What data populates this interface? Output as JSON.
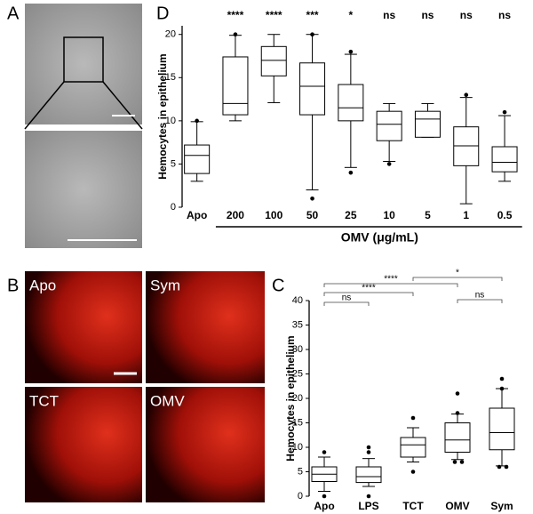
{
  "panel_labels": [
    "A",
    "B",
    "C",
    "D"
  ],
  "image_labels": [
    "Apo",
    "Sym",
    "TCT",
    "OMV"
  ],
  "chart_data": [
    {
      "type": "box",
      "ylabel": "Hemocytes in epithelium",
      "xlabel": "OMV (μg/mL)",
      "categories": [
        "Apo",
        "200",
        "100",
        "50",
        "25",
        "10",
        "5",
        "1",
        "0.5"
      ],
      "annotations": [
        null,
        "****",
        "****",
        "***",
        "*",
        "ns",
        "ns",
        "ns",
        "ns"
      ],
      "boxes": [
        {
          "low": 3.0,
          "q1": 3.9,
          "median": 6.0,
          "q3": 7.2,
          "high": 9.9,
          "outliers": [
            10
          ]
        },
        {
          "low": 10.0,
          "q1": 10.7,
          "median": 12.0,
          "q3": 17.4,
          "high": 19.9,
          "outliers": [
            20
          ]
        },
        {
          "low": 12.1,
          "q1": 15.2,
          "median": 17.0,
          "q3": 18.6,
          "high": 20,
          "outliers": []
        },
        {
          "low": 2.0,
          "q1": 10.7,
          "median": 14.0,
          "q3": 16.7,
          "high": 20,
          "outliers": [
            1,
            20
          ]
        },
        {
          "low": 4.6,
          "q1": 10.0,
          "median": 11.5,
          "q3": 14.2,
          "high": 17.7,
          "outliers": [
            18,
            4
          ]
        },
        {
          "low": 5.3,
          "q1": 7.7,
          "median": 9.6,
          "q3": 11.1,
          "high": 12,
          "outliers": [
            5
          ]
        },
        {
          "low": 8.1,
          "q1": 8.1,
          "median": 10.2,
          "q3": 11.1,
          "high": 12,
          "outliers": []
        },
        {
          "low": 0.4,
          "q1": 4.8,
          "median": 7.1,
          "q3": 9.3,
          "high": 12.7,
          "outliers": [
            13
          ]
        },
        {
          "low": 3.0,
          "q1": 4.1,
          "median": 5.2,
          "q3": 7.0,
          "high": 10.6,
          "outliers": [
            11
          ]
        }
      ],
      "ylim": [
        0,
        21
      ],
      "yticks": [
        0,
        5,
        10,
        15,
        20
      ],
      "color": "#000000"
    },
    {
      "type": "box",
      "ylabel": "Hemocytes in epithelium",
      "categories": [
        "Apo",
        "LPS",
        "TCT",
        "OMV",
        "Sym"
      ],
      "boxes": [
        {
          "low": 1,
          "q1": 3,
          "median": 4.5,
          "q3": 6,
          "high": 8,
          "outliers": [
            9,
            0
          ]
        },
        {
          "low": 2,
          "q1": 2.8,
          "median": 4,
          "q3": 6,
          "high": 7.7,
          "outliers": [
            10,
            9,
            0
          ]
        },
        {
          "low": 7,
          "q1": 8,
          "median": 10.5,
          "q3": 12,
          "high": 14,
          "outliers": [
            16,
            5
          ]
        },
        {
          "low": 7.5,
          "q1": 9,
          "median": 11.5,
          "q3": 15,
          "high": 16.8,
          "outliers": [
            21,
            17,
            7,
            7
          ]
        },
        {
          "low": 6.2,
          "q1": 9.5,
          "median": 13,
          "q3": 18,
          "high": 22,
          "outliers": [
            24,
            22,
            6,
            6
          ]
        }
      ],
      "comparisons": [
        {
          "from": 0,
          "to": 1,
          "label": "ns"
        },
        {
          "from": 0,
          "to": 2,
          "label": "****"
        },
        {
          "from": 0,
          "to": 3,
          "label": "****"
        },
        {
          "from": 2,
          "to": 4,
          "label": "*"
        },
        {
          "from": 3,
          "to": 4,
          "label": "ns"
        }
      ],
      "ylim": [
        0,
        40
      ],
      "yticks": [
        0,
        5,
        10,
        15,
        20,
        25,
        30,
        35,
        40
      ],
      "color": "#000000"
    }
  ]
}
